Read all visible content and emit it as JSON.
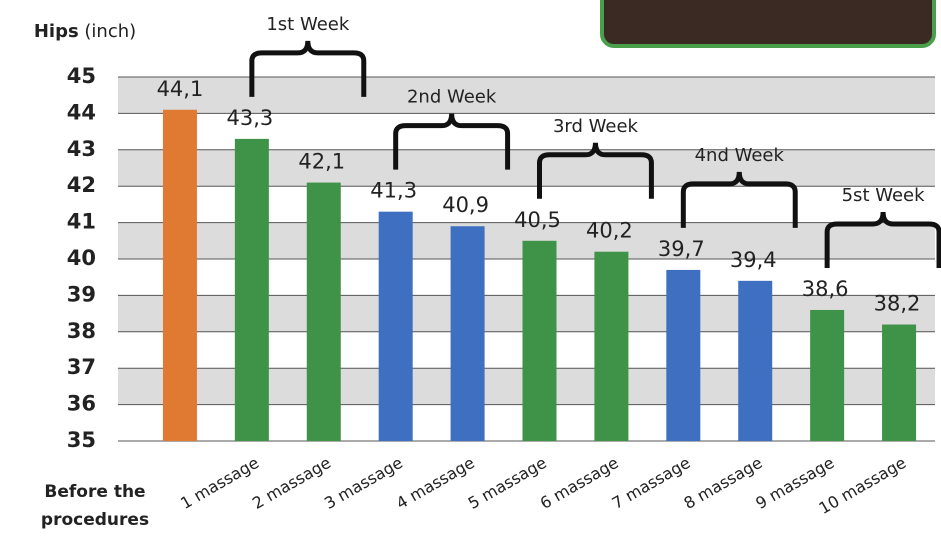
{
  "chart_data": {
    "type": "bar",
    "y_label": {
      "main": "Hips",
      "unit": "(inch)"
    },
    "categories": [
      "Before the procedures",
      "1 massage",
      "2 massage",
      "3 massage",
      "4 massage",
      "5 massage",
      "6 massage",
      "7 massage",
      "8 massage",
      "9 massage",
      "10 massage"
    ],
    "values": [
      44.1,
      43.3,
      42.1,
      41.3,
      40.9,
      40.5,
      40.2,
      39.7,
      39.4,
      38.6,
      38.2
    ],
    "value_labels": [
      "44,1",
      "43,3",
      "42,1",
      "41,3",
      "40,9",
      "40,5",
      "40,2",
      "39,7",
      "39,4",
      "38,6",
      "38,2"
    ],
    "colors": [
      "#e07a33",
      "#3f9348",
      "#3f9348",
      "#3f6fc0",
      "#3f6fc0",
      "#3f9348",
      "#3f9348",
      "#3f6fc0",
      "#3f6fc0",
      "#3f9348",
      "#3f9348"
    ],
    "annotations": [
      "1st Week",
      "2nd Week",
      "3rd Week",
      "4nd Week",
      "5st Week"
    ],
    "ylim": [
      35,
      45
    ],
    "yticks": [
      35,
      36,
      37,
      38,
      39,
      40,
      41,
      42,
      43,
      44,
      45
    ],
    "grid": true
  }
}
